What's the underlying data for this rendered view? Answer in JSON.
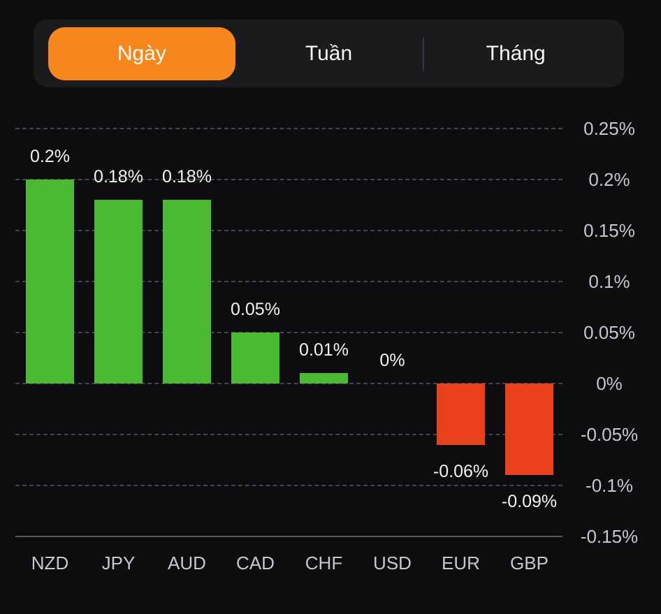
{
  "tabs": {
    "items": [
      {
        "label": "Ngày",
        "selected": true
      },
      {
        "label": "Tuần",
        "selected": false
      },
      {
        "label": "Tháng",
        "selected": false
      }
    ]
  },
  "colors": {
    "background": "#0d0d0f",
    "tabbar_background": "#1b1b1e",
    "tab_selected_accent": "#f6861d",
    "positive_bar": "#4bb931",
    "negative_bar": "#e8411b",
    "gridline": "#45454b",
    "axis_line": "#58585c",
    "axis_label_text": "#c7c7cc",
    "value_label_text": "#f2f2f3"
  },
  "chart_data": {
    "type": "bar",
    "title": "",
    "xlabel": "",
    "ylabel": "",
    "categories": [
      "NZD",
      "JPY",
      "AUD",
      "CAD",
      "CHF",
      "USD",
      "EUR",
      "GBP"
    ],
    "values": [
      0.2,
      0.18,
      0.18,
      0.05,
      0.01,
      0,
      -0.06,
      -0.09
    ],
    "value_labels": [
      "0.2%",
      "0.18%",
      "0.18%",
      "0.05%",
      "0.01%",
      "0%",
      "-0.06%",
      "-0.09%"
    ],
    "y_ticks": [
      0.25,
      0.2,
      0.15,
      0.1,
      0.05,
      0,
      -0.05,
      -0.1,
      -0.15
    ],
    "y_tick_labels": [
      "0.25%",
      "0.2%",
      "0.15%",
      "0.1%",
      "0.05%",
      "0%",
      "-0.05%",
      "-0.1%",
      "-0.15%"
    ],
    "ylim": [
      -0.15,
      0.25
    ],
    "grid": "dashed-horizontal",
    "legend_position": "none",
    "y_axis_side": "right"
  }
}
